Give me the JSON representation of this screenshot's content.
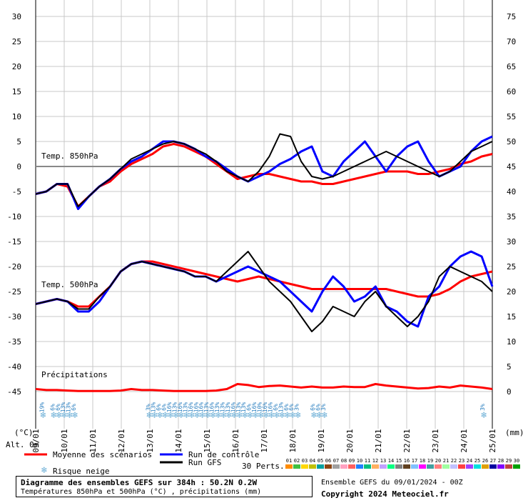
{
  "chart_data": {
    "type": "line",
    "left_axis": {
      "label": "(°C)",
      "ticks": [
        30,
        25,
        20,
        15,
        10,
        5,
        0,
        -5,
        -10,
        -15,
        -20,
        -25,
        -30,
        -35,
        -40,
        -45
      ]
    },
    "right_axis": {
      "label": "(mm)",
      "ticks": [
        75,
        70,
        65,
        60,
        55,
        50,
        45,
        40,
        35,
        30,
        25,
        20,
        15,
        10,
        5,
        0
      ]
    },
    "x_axis": {
      "alt_label": "Alt. 0m",
      "dates": [
        "09/01",
        "10/01",
        "11/01",
        "12/01",
        "13/01",
        "14/01",
        "15/01",
        "16/01",
        "17/01",
        "18/01",
        "19/01",
        "20/01",
        "21/01",
        "22/01",
        "23/01",
        "24/01",
        "25/01"
      ]
    },
    "panel_labels": {
      "t850": "Temp. 850hPa",
      "t500": "Temp. 500hPa",
      "precip": "Précipitations"
    },
    "series": [
      {
        "name": "Moyenne des scénarios",
        "color": "#ff0000",
        "t850": [
          -5.5,
          -5,
          -3.5,
          -4,
          -8,
          -6,
          -4,
          -3,
          -1,
          0.5,
          1.5,
          2.5,
          4,
          4.5,
          4,
          3,
          2,
          0.5,
          -1,
          -2.5,
          -2,
          -1.5,
          -1.5,
          -2,
          -2.5,
          -3,
          -3,
          -3.5,
          -3.5,
          -3,
          -2.5,
          -2,
          -1.5,
          -1,
          -1,
          -1,
          -1.5,
          -1.5,
          -1,
          -0.5,
          0.5,
          1,
          2,
          2.5
        ],
        "t500": [
          -27.5,
          -27,
          -26.5,
          -27,
          -28,
          -28,
          -26,
          -24,
          -21,
          -19.5,
          -19,
          -19,
          -19.5,
          -20,
          -20.5,
          -21,
          -21.5,
          -22,
          -22.5,
          -23,
          -22.5,
          -22,
          -22.5,
          -23,
          -23.5,
          -24,
          -24.5,
          -24.5,
          -24.5,
          -24.5,
          -24.5,
          -24.5,
          -24.5,
          -24.5,
          -25,
          -25.5,
          -26,
          -26,
          -25.5,
          -24.5,
          -23,
          -22,
          -21.5,
          -21
        ],
        "precip": [
          0.5,
          0.3,
          0.3,
          0.2,
          0.1,
          0.1,
          0.1,
          0.1,
          0.2,
          0.5,
          0.3,
          0.3,
          0.2,
          0.1,
          0.1,
          0.1,
          0.1,
          0.2,
          0.5,
          1.5,
          1.3,
          0.9,
          1.1,
          1.2,
          1.0,
          0.8,
          1.0,
          0.8,
          0.8,
          1.0,
          0.9,
          0.9,
          1.5,
          1.2,
          1.0,
          0.8,
          0.6,
          0.7,
          1.0,
          0.8,
          1.2,
          1.0,
          0.8,
          0.5
        ]
      },
      {
        "name": "Run de contrôle",
        "color": "#0000ff",
        "t850": [
          -5.5,
          -5,
          -3.5,
          -3.5,
          -8.5,
          -6,
          -4,
          -2.5,
          -0.5,
          1,
          2,
          3.5,
          5,
          5,
          4.5,
          3.5,
          2,
          1,
          -0.5,
          -2,
          -3,
          -2,
          -1,
          0.5,
          1.5,
          3,
          4,
          -1,
          -2,
          1,
          3,
          5,
          2,
          -1,
          2,
          4,
          5,
          1,
          -2,
          -1,
          0,
          3,
          5,
          6
        ],
        "t500": [
          -27.5,
          -27,
          -26.5,
          -27,
          -29,
          -29,
          -27,
          -24,
          -21,
          -19.5,
          -19,
          -19.5,
          -20,
          -20.5,
          -21,
          -22,
          -22,
          -23,
          -22,
          -21,
          -20,
          -21,
          -22,
          -23,
          -25,
          -27,
          -29,
          -25,
          -22,
          -24,
          -27,
          -26,
          -24,
          -28,
          -29,
          -31,
          -32,
          -26,
          -24,
          -20,
          -18,
          -17,
          -18,
          -24
        ]
      },
      {
        "name": "Run GFS",
        "color": "#000000",
        "t850": [
          -5.5,
          -5,
          -3.5,
          -3.5,
          -8,
          -6,
          -4,
          -2.5,
          -0.5,
          1.5,
          2.5,
          3.5,
          4.5,
          5,
          4.5,
          3.5,
          2.5,
          1,
          -1,
          -2,
          -3,
          -1,
          2,
          6.5,
          6,
          1,
          -2,
          -2.5,
          -2,
          -1,
          0,
          1,
          2,
          3,
          2,
          1,
          0,
          -1,
          -2,
          -1,
          1,
          3,
          4,
          5
        ],
        "t500": [
          -27.5,
          -27,
          -26.5,
          -27,
          -28.5,
          -28.5,
          -26,
          -24,
          -21,
          -19.5,
          -19,
          -19.5,
          -20,
          -20.5,
          -21,
          -22,
          -22,
          -23,
          -21,
          -19,
          -17,
          -20,
          -23,
          -25,
          -27,
          -30,
          -33,
          -31,
          -28,
          -29,
          -30,
          -27,
          -25,
          -28,
          -30,
          -32,
          -30,
          -27,
          -22,
          -20,
          -21,
          -22,
          -23,
          -25
        ]
      }
    ],
    "snow_risk_labels": [
      {
        "pos": 0.5,
        "text": "19%"
      },
      {
        "pos": 1.5,
        "text": "6%"
      },
      {
        "pos": 2,
        "text": "6%"
      },
      {
        "pos": 2.5,
        "text": "13%"
      },
      {
        "pos": 3,
        "text": "13%"
      },
      {
        "pos": 3.5,
        "text": "6%"
      },
      {
        "pos": 10.5,
        "text": "3%"
      },
      {
        "pos": 11,
        "text": "13%"
      },
      {
        "pos": 11.5,
        "text": "6%"
      },
      {
        "pos": 12,
        "text": "6%"
      },
      {
        "pos": 12.5,
        "text": "16%"
      },
      {
        "pos": 13,
        "text": "13%"
      },
      {
        "pos": 13.5,
        "text": "16%"
      },
      {
        "pos": 14,
        "text": "13%"
      },
      {
        "pos": 14.5,
        "text": "16%"
      },
      {
        "pos": 15,
        "text": "16%"
      },
      {
        "pos": 15.5,
        "text": "16%"
      },
      {
        "pos": 16,
        "text": "13%"
      },
      {
        "pos": 16.5,
        "text": "16%"
      },
      {
        "pos": 17,
        "text": "13%"
      },
      {
        "pos": 17.5,
        "text": "13%"
      },
      {
        "pos": 18,
        "text": "13%"
      },
      {
        "pos": 18.5,
        "text": "16%"
      },
      {
        "pos": 19,
        "text": "13%"
      },
      {
        "pos": 19.5,
        "text": "13%"
      },
      {
        "pos": 20,
        "text": "6%"
      },
      {
        "pos": 20.5,
        "text": "16%"
      },
      {
        "pos": 21,
        "text": "10%"
      },
      {
        "pos": 21.5,
        "text": "16%"
      },
      {
        "pos": 22,
        "text": "16%"
      },
      {
        "pos": 22.5,
        "text": "6%"
      },
      {
        "pos": 23,
        "text": "13%"
      },
      {
        "pos": 23.5,
        "text": "6%"
      },
      {
        "pos": 24,
        "text": "6%"
      },
      {
        "pos": 24.5,
        "text": "3%"
      },
      {
        "pos": 26,
        "text": "6%"
      },
      {
        "pos": 26.5,
        "text": "6%"
      },
      {
        "pos": 27,
        "text": "3%"
      },
      {
        "pos": 42,
        "text": "3%"
      }
    ]
  },
  "legend": {
    "mean_label": "Moyenne des scénarios",
    "control_label": "Run de contrôle",
    "gfs_label": "Run GFS",
    "snow_label": "Risque neige",
    "perts_label": "30 Perts.",
    "pert_numbers": [
      "01",
      "02",
      "03",
      "04",
      "05",
      "06",
      "07",
      "08",
      "09",
      "10",
      "11",
      "12",
      "13",
      "14",
      "15",
      "16",
      "17",
      "18",
      "19",
      "20",
      "21",
      "22",
      "23",
      "24",
      "25",
      "26",
      "27",
      "28",
      "29",
      "30"
    ],
    "pert_colors": [
      "#ff8c00",
      "#40c040",
      "#ffd700",
      "#c0c000",
      "#00a0a0",
      "#8b4513",
      "#a0a0a0",
      "#ffa0c0",
      "#ff6060",
      "#2080ff",
      "#00c080",
      "#ffb060",
      "#c0a0ff",
      "#00ff80",
      "#808080",
      "#604020",
      "#80c0ff",
      "#ff00ff",
      "#40a0a0",
      "#ff8080",
      "#a0ffa0",
      "#c0c0ff",
      "#ff4040",
      "#a040ff",
      "#00e0e0",
      "#e0a000",
      "#0000a0",
      "#8000ff",
      "#c04040",
      "#00a000"
    ]
  },
  "footer": {
    "title": "Diagramme des ensembles GEFS sur 384h : 50.2N 0.2W",
    "subtitle": "Températures 850hPa et 500hPa (°C) , précipitations (mm)",
    "run": "Ensemble GEFS du 09/01/2024 - 00Z",
    "copyright": "Copyright 2024 Meteociel.fr"
  }
}
